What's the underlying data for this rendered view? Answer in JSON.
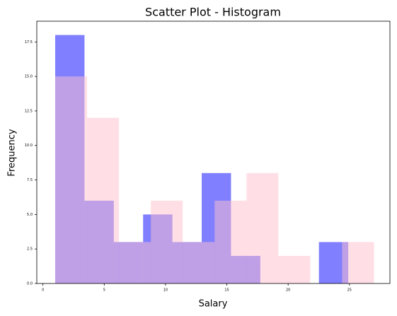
{
  "chart_data": {
    "type": "histogram",
    "title": "Scatter Plot - Histogram",
    "x_label": "Salary",
    "y_label": "Frequency",
    "series": [
      {
        "color": "blue",
        "opacity": 0.5,
        "bins": [
          1,
          3.39,
          5.78,
          8.17,
          10.56,
          12.95,
          15.34,
          17.73,
          20.12,
          22.51,
          24.9
        ],
        "values": [
          18,
          6,
          3,
          5,
          3,
          8,
          2,
          0,
          0,
          3
        ]
      },
      {
        "color": "pink",
        "opacity": 0.5,
        "bins": [
          1,
          3.6,
          6.2,
          8.8,
          11.4,
          14,
          16.6,
          19.2,
          21.8,
          24.4,
          27
        ],
        "values": [
          15,
          12,
          3,
          6,
          3,
          6,
          8,
          2,
          0,
          3
        ]
      }
    ],
    "xlim": [
      -0.5,
      28.3
    ],
    "xticks": [
      0,
      5,
      10,
      15,
      20,
      25
    ],
    "ylim": [
      0,
      19
    ],
    "yticks": [
      {
        "value": 0,
        "label": "0.0"
      },
      2.5,
      {
        "value": 5,
        "label": "5.0"
      },
      7.5,
      {
        "value": 10,
        "label": "10.0"
      },
      12.5,
      {
        "value": 15,
        "label": "15.0"
      },
      17.5
    ]
  }
}
